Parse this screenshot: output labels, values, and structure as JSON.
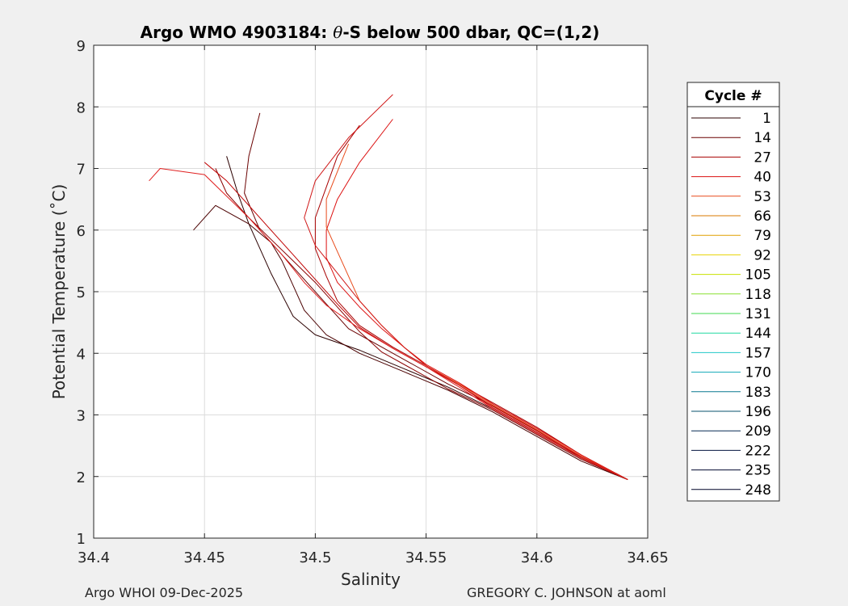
{
  "chart_data": {
    "type": "line",
    "title_parts": {
      "prefix": "Argo WMO 4903184: ",
      "theta": "θ",
      "suffix": "-S below 500 dbar,  QC=(1,2)"
    },
    "xlabel": "Salinity",
    "ylabel": "Potential Temperature (˚C)",
    "xlim": [
      34.4,
      34.65
    ],
    "ylim": [
      1,
      9
    ],
    "x_ticks": [
      "34.4",
      "34.45",
      "34.5",
      "34.55",
      "34.6",
      "34.65"
    ],
    "y_ticks": [
      "1",
      "2",
      "3",
      "4",
      "5",
      "6",
      "7",
      "8",
      "9"
    ],
    "grid": true,
    "legend": {
      "title": "Cycle #",
      "placement": "right-outside",
      "entries": [
        {
          "label": "1",
          "color": "#2b0000"
        },
        {
          "label": "14",
          "color": "#6a0000"
        },
        {
          "label": "27",
          "color": "#a80000"
        },
        {
          "label": "40",
          "color": "#dc1010"
        },
        {
          "label": "53",
          "color": "#e84a1a"
        },
        {
          "label": "66",
          "color": "#d97800"
        },
        {
          "label": "79",
          "color": "#e0a000"
        },
        {
          "label": "92",
          "color": "#e6d200"
        },
        {
          "label": "105",
          "color": "#c8e000"
        },
        {
          "label": "118",
          "color": "#88e030"
        },
        {
          "label": "131",
          "color": "#40d850"
        },
        {
          "label": "144",
          "color": "#20d8a0"
        },
        {
          "label": "157",
          "color": "#20c8c8"
        },
        {
          "label": "170",
          "color": "#10a8b8"
        },
        {
          "label": "183",
          "color": "#0a7890"
        },
        {
          "label": "196",
          "color": "#08506e"
        },
        {
          "label": "209",
          "color": "#062a55"
        },
        {
          "label": "222",
          "color": "#041440"
        },
        {
          "label": "235",
          "color": "#020a30"
        },
        {
          "label": "248",
          "color": "#000428"
        }
      ]
    },
    "series": [
      {
        "color": "#2b0000",
        "x": [
          34.641,
          34.62,
          34.6,
          34.58,
          34.56,
          34.54,
          34.52,
          34.5,
          34.49,
          34.485,
          34.48,
          34.475,
          34.47,
          34.465,
          34.46
        ],
        "y": [
          1.95,
          2.3,
          2.7,
          3.1,
          3.45,
          3.75,
          4.05,
          4.3,
          4.6,
          4.95,
          5.3,
          5.7,
          6.1,
          6.6,
          7.2
        ]
      },
      {
        "color": "#4a0000",
        "x": [
          34.641,
          34.62,
          34.6,
          34.58,
          34.56,
          34.54,
          34.52,
          34.505,
          34.495,
          34.49,
          34.485,
          34.48,
          34.47,
          34.455,
          34.445
        ],
        "y": [
          1.95,
          2.25,
          2.65,
          3.05,
          3.4,
          3.7,
          4.0,
          4.3,
          4.7,
          5.1,
          5.5,
          5.8,
          6.1,
          6.4,
          6.0
        ]
      },
      {
        "color": "#6a0000",
        "x": [
          34.641,
          34.62,
          34.6,
          34.58,
          34.56,
          34.545,
          34.53,
          34.515,
          34.505,
          34.495,
          34.485,
          34.475,
          34.468,
          34.47,
          34.475
        ],
        "y": [
          1.95,
          2.3,
          2.75,
          3.15,
          3.5,
          3.8,
          4.1,
          4.4,
          4.8,
          5.2,
          5.6,
          6.0,
          6.6,
          7.2,
          7.9
        ]
      },
      {
        "color": "#8a0000",
        "x": [
          34.641,
          34.62,
          34.6,
          34.58,
          34.56,
          34.545,
          34.53,
          34.52,
          34.51,
          34.5,
          34.49,
          34.48,
          34.47,
          34.46,
          34.455
        ],
        "y": [
          1.95,
          2.28,
          2.68,
          3.08,
          3.42,
          3.72,
          4.02,
          4.35,
          4.75,
          5.15,
          5.5,
          5.85,
          6.2,
          6.6,
          7.0
        ]
      },
      {
        "color": "#a80000",
        "x": [
          34.641,
          34.62,
          34.6,
          34.58,
          34.565,
          34.55,
          34.535,
          34.52,
          34.51,
          34.505,
          34.5,
          34.5,
          34.505,
          34.51,
          34.52
        ],
        "y": [
          1.95,
          2.35,
          2.8,
          3.2,
          3.5,
          3.8,
          4.1,
          4.45,
          4.85,
          5.25,
          5.7,
          6.2,
          6.7,
          7.2,
          7.7
        ]
      },
      {
        "color": "#c00000",
        "x": [
          34.641,
          34.62,
          34.6,
          34.58,
          34.565,
          34.55,
          34.535,
          34.52,
          34.51,
          34.5,
          34.49,
          34.48,
          34.47,
          34.46,
          34.45
        ],
        "y": [
          1.95,
          2.32,
          2.72,
          3.12,
          3.48,
          3.78,
          4.08,
          4.42,
          4.8,
          5.2,
          5.6,
          6.0,
          6.4,
          6.8,
          7.1
        ]
      },
      {
        "color": "#dc1010",
        "x": [
          34.641,
          34.62,
          34.6,
          34.58,
          34.565,
          34.55,
          34.54,
          34.53,
          34.52,
          34.51,
          34.505,
          34.505,
          34.51,
          34.52,
          34.535
        ],
        "y": [
          1.95,
          2.35,
          2.78,
          3.18,
          3.52,
          3.82,
          4.1,
          4.4,
          4.75,
          5.15,
          5.55,
          6.0,
          6.5,
          7.1,
          7.8
        ]
      },
      {
        "color": "#e02020",
        "x": [
          34.641,
          34.62,
          34.6,
          34.58,
          34.565,
          34.55,
          34.535,
          34.52,
          34.505,
          34.495,
          34.485,
          34.47,
          34.45,
          34.43,
          34.425
        ],
        "y": [
          1.95,
          2.3,
          2.7,
          3.1,
          3.45,
          3.78,
          4.08,
          4.4,
          4.78,
          5.15,
          5.6,
          6.2,
          6.9,
          7.0,
          6.8
        ]
      },
      {
        "color": "#e84a1a",
        "x": [
          34.641,
          34.62,
          34.6,
          34.58,
          34.565,
          34.55,
          34.54,
          34.53,
          34.52,
          34.515,
          34.51,
          34.505,
          34.505,
          34.51,
          34.515
        ],
        "y": [
          1.95,
          2.33,
          2.76,
          3.16,
          3.5,
          3.8,
          4.1,
          4.45,
          4.85,
          5.25,
          5.65,
          6.05,
          6.5,
          6.95,
          7.4
        ]
      },
      {
        "color": "#d01818",
        "x": [
          34.641,
          34.62,
          34.6,
          34.58,
          34.565,
          34.55,
          34.54,
          34.53,
          34.52,
          34.51,
          34.5,
          34.495,
          34.5,
          34.515,
          34.535
        ],
        "y": [
          1.95,
          2.32,
          2.74,
          3.14,
          3.48,
          3.8,
          4.1,
          4.45,
          4.85,
          5.3,
          5.75,
          6.2,
          6.8,
          7.5,
          8.2
        ]
      }
    ]
  },
  "footer": {
    "left": "Argo WHOI 09-Dec-2025",
    "right": "GREGORY C. JOHNSON at aoml"
  }
}
